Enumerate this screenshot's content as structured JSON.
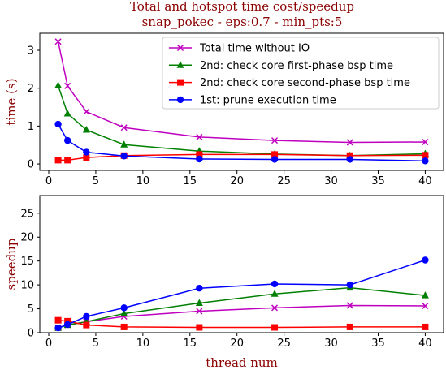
{
  "figure": {
    "title_line1": "Total and hotspot time cost/speedup",
    "title_line2": "snap_pokec - eps:0.7 - min_pts:5"
  },
  "chart_data": [
    {
      "type": "line",
      "ylabel": "time (s)",
      "xlabel": "",
      "xlim": [
        -0.95,
        41.95
      ],
      "ylim": [
        -0.17,
        3.45
      ],
      "xticks": [
        0,
        5,
        10,
        15,
        20,
        25,
        30,
        35,
        40
      ],
      "yticks": [
        0,
        1,
        2,
        3
      ],
      "legend": "top-right",
      "grid": false,
      "x": [
        1,
        2,
        4,
        8,
        16,
        24,
        32,
        40
      ],
      "series": [
        {
          "name": "Total time without IO",
          "color": "#bf00bf",
          "marker": "x",
          "values": [
            3.23,
            2.06,
            1.38,
            0.96,
            0.71,
            0.62,
            0.57,
            0.58
          ]
        },
        {
          "name": "2nd: check core first-phase bsp time",
          "color": "#008000",
          "marker": "triangle",
          "values": [
            2.07,
            1.33,
            0.9,
            0.51,
            0.34,
            0.26,
            0.22,
            0.27
          ]
        },
        {
          "name": "2nd: check core second-phase bsp time",
          "color": "#ff0000",
          "marker": "square",
          "values": [
            0.1,
            0.1,
            0.17,
            0.22,
            0.25,
            0.25,
            0.22,
            0.23
          ]
        },
        {
          "name": "1st: prune execution time",
          "color": "#0000ff",
          "marker": "circle",
          "values": [
            1.05,
            0.62,
            0.31,
            0.21,
            0.13,
            0.12,
            0.12,
            0.08
          ]
        }
      ]
    },
    {
      "type": "line",
      "ylabel": "speedup",
      "xlabel": "thread num",
      "xlim": [
        -0.95,
        41.95
      ],
      "ylim": [
        0,
        28.7
      ],
      "xticks": [
        0,
        5,
        10,
        15,
        20,
        25,
        30,
        35,
        40
      ],
      "yticks": [
        0,
        5,
        10,
        15,
        20,
        25
      ],
      "grid": false,
      "x": [
        1,
        2,
        4,
        8,
        16,
        24,
        32,
        40
      ],
      "series": [
        {
          "color": "#bf00bf",
          "marker": "x",
          "values": [
            1.0,
            1.6,
            2.3,
            3.4,
            4.5,
            5.2,
            5.7,
            5.6
          ]
        },
        {
          "color": "#008000",
          "marker": "triangle",
          "values": [
            1.0,
            1.6,
            2.3,
            4.0,
            6.2,
            8.1,
            9.4,
            7.8
          ]
        },
        {
          "color": "#ff0000",
          "marker": "square",
          "values": [
            2.6,
            2.4,
            1.6,
            1.2,
            1.1,
            1.1,
            1.2,
            1.2
          ]
        },
        {
          "color": "#0000ff",
          "marker": "circle",
          "values": [
            1.0,
            1.7,
            3.4,
            5.2,
            9.3,
            10.2,
            10.0,
            15.2
          ]
        }
      ]
    }
  ]
}
